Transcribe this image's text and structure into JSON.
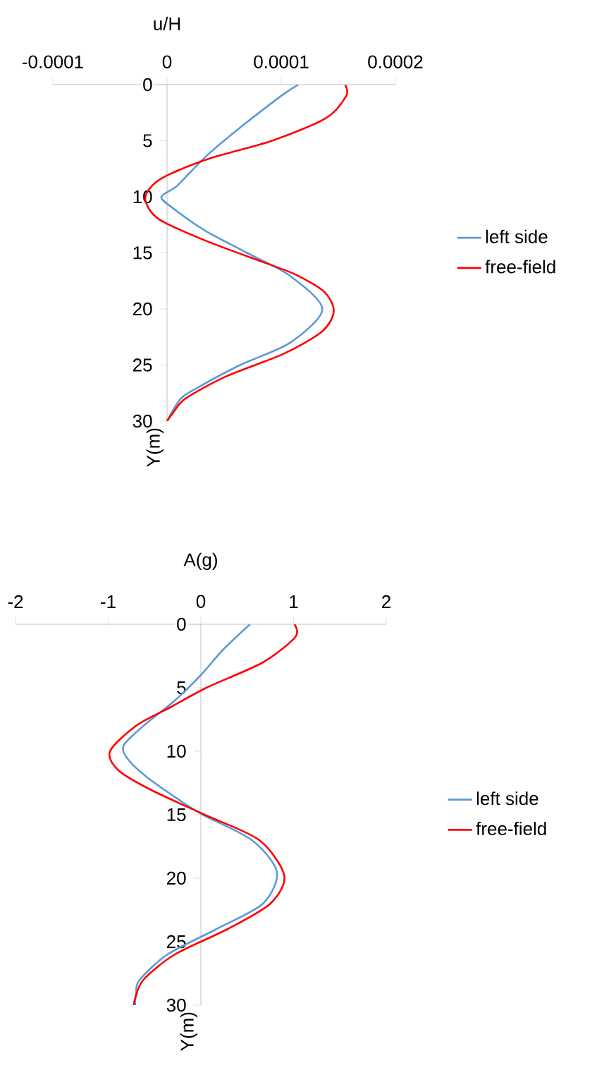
{
  "chart_data": [
    {
      "type": "line",
      "xlabel": "u/H",
      "ylabel": "Y(m)",
      "xlim": [
        -0.0001,
        0.0002
      ],
      "ylim": [
        30,
        0
      ],
      "xticks": [
        -0.0001,
        0,
        0.0001,
        0.0002
      ],
      "yticks": [
        0,
        5,
        10,
        15,
        20,
        25,
        30
      ],
      "legend": "right",
      "series": [
        {
          "name": "left side",
          "color": "#5b9bd5",
          "x": [
            0.000115,
            0.0001,
            6.2e-05,
            3.3e-05,
            9e-06,
            -5e-06,
            5e-06,
            3.3e-05,
            7e-05,
            0.000107,
            0.000136,
            0.000108,
            6.4e-05,
            2.7e-05,
            1.2e-05,
            0.0
          ],
          "values": [
            0,
            1,
            4,
            6.5,
            9,
            10,
            11,
            13,
            15,
            17,
            20,
            23,
            25,
            27,
            28,
            30
          ]
        },
        {
          "name": "free-field",
          "color": "#ff0000",
          "x": [
            0.000156,
            0.000157,
            0.000139,
            9.2e-05,
            4e-05,
            2e-06,
            -1.3e-05,
            -1.9e-05,
            -7e-06,
            3.6e-05,
            8.9e-05,
            0.000114,
            0.000138,
            0.000146,
            0.000136,
            0.000102,
            5.2e-05,
            1.6e-05,
            5e-06,
            0.0
          ],
          "values": [
            0,
            1,
            3,
            5,
            6.5,
            8,
            9,
            10.3,
            12,
            14,
            16,
            17,
            18.5,
            20.2,
            22,
            24,
            26,
            28,
            29.3,
            30
          ]
        }
      ]
    },
    {
      "type": "line",
      "xlabel": "A(g)",
      "ylabel": "Y(m)",
      "xlim": [
        -2,
        2
      ],
      "ylim": [
        30,
        0
      ],
      "xticks": [
        -2,
        -1,
        0,
        1,
        2
      ],
      "yticks": [
        0,
        5,
        10,
        15,
        20,
        25,
        30
      ],
      "legend": "right",
      "series": [
        {
          "name": "left side",
          "color": "#5b9bd5",
          "x": [
            0.53,
            0.24,
            0.0,
            -0.28,
            -0.62,
            -0.83,
            -0.8,
            -0.59,
            -0.2,
            0.02,
            0.55,
            0.82,
            0.67,
            0.17,
            -0.36,
            -0.66,
            -0.7,
            -0.71
          ],
          "values": [
            0,
            2,
            4,
            6,
            8,
            9.5,
            10.5,
            12,
            14,
            15,
            17,
            19.5,
            22,
            24,
            26,
            28,
            29,
            30
          ]
        },
        {
          "name": "free-field",
          "color": "#ff0000",
          "x": [
            1.01,
            1.02,
            0.67,
            0.06,
            -0.32,
            -0.7,
            -0.98,
            -0.89,
            -0.55,
            0.04,
            0.63,
            0.9,
            0.75,
            0.29,
            -0.28,
            -0.62,
            -0.71,
            -0.72
          ],
          "values": [
            0,
            1,
            3,
            5,
            6.5,
            8,
            10,
            11.5,
            13,
            15,
            17,
            19.8,
            22,
            24,
            26,
            28,
            29.5,
            30
          ]
        }
      ]
    }
  ]
}
